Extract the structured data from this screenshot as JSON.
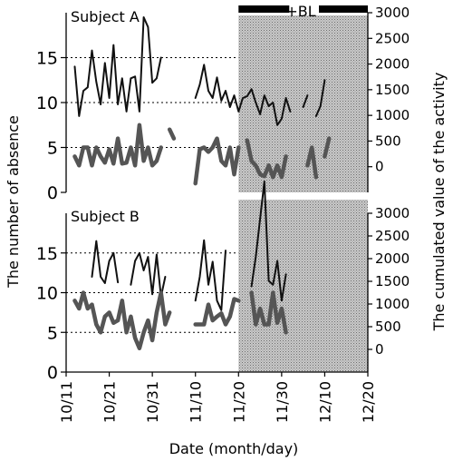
{
  "chart_data": [
    {
      "type": "line",
      "panel_label": "Subject A",
      "ylabel": "The number of absence",
      "y2label": "The cumulated value of the activity",
      "ylim": [
        0,
        20
      ],
      "y2lim": [
        -500,
        3000
      ],
      "yticks": [
        0,
        5,
        10,
        15
      ],
      "y2ticks": [
        0,
        500,
        1000,
        1500,
        2000,
        2500,
        3000
      ],
      "grid": "dotted at y = 5, 10, 15",
      "bl_annotation": "+BL",
      "bl_start": "11/20",
      "series": [
        {
          "style": "thin black line",
          "axis": "left",
          "x": [
            "10/13",
            "10/14",
            "10/15",
            "10/16",
            "10/17",
            "10/18",
            "10/19",
            "10/20",
            "10/21",
            "10/22",
            "10/23",
            "10/24",
            "10/25",
            "10/26",
            "10/27",
            "10/28",
            "10/29",
            "10/30",
            "10/31",
            "11/01",
            "11/02",
            null,
            "11/10",
            "11/11",
            "11/12",
            "11/13",
            "11/14",
            "11/15",
            "11/16",
            "11/17",
            "11/18",
            "11/19",
            "11/20",
            "11/21",
            "11/22",
            "11/23",
            "11/24",
            "11/25",
            "11/26",
            "11/27",
            "11/28",
            "11/29",
            "11/30",
            "12/01",
            "12/02",
            null,
            "12/05",
            "12/06",
            null,
            "12/08",
            "12/09",
            "12/10"
          ],
          "y": [
            14,
            8.5,
            11.3,
            11.7,
            15.8,
            12.3,
            9.8,
            14.4,
            10.5,
            16.4,
            9.8,
            12.7,
            9,
            12.7,
            12.9,
            9,
            19.5,
            18.4,
            12.2,
            12.7,
            15,
            null,
            10.5,
            12,
            14.2,
            11.3,
            10.5,
            12.8,
            10.2,
            11.3,
            9.5,
            10.8,
            9,
            10.5,
            10.7,
            11.5,
            10,
            8.7,
            10.8,
            9.6,
            10,
            7.5,
            8.2,
            10.5,
            9,
            null,
            9.5,
            10.8,
            null,
            8.5,
            9.6,
            12.5
          ]
        },
        {
          "style": "thick grey line",
          "axis": "left",
          "x": [
            "10/13",
            "10/14",
            "10/15",
            "10/16",
            "10/17",
            "10/18",
            "10/19",
            "10/20",
            "10/21",
            "10/22",
            "10/23",
            "10/24",
            "10/25",
            "10/26",
            "10/27",
            "10/28",
            "10/29",
            "10/30",
            "10/31",
            "11/01",
            "11/02",
            null,
            "11/04",
            "11/05",
            null,
            "11/10",
            "11/11",
            "11/12",
            "11/13",
            "11/14",
            "11/15",
            "11/16",
            "11/17",
            "11/18",
            "11/19",
            "11/20",
            null,
            "11/22",
            "11/23",
            "11/24",
            "11/25",
            "11/26",
            "11/27",
            "11/28",
            "11/29",
            "11/30",
            "12/01",
            null,
            "12/03",
            null,
            "12/06",
            "12/07",
            "12/08",
            null,
            "12/10",
            "12/11"
          ],
          "y": [
            4,
            3,
            5,
            5,
            3,
            5,
            4,
            3.3,
            4.8,
            3.2,
            6,
            3.2,
            3.3,
            5,
            3,
            7.5,
            3.5,
            5,
            3,
            3.5,
            5,
            null,
            7,
            6,
            null,
            1,
            4.8,
            5,
            4.5,
            5,
            6,
            3.5,
            3,
            5,
            2,
            5,
            null,
            5.8,
            3.5,
            3,
            2,
            1.8,
            3,
            1.7,
            3,
            1.7,
            4,
            null,
            2.3,
            null,
            3,
            5,
            1.7,
            null,
            4,
            6
          ]
        }
      ]
    },
    {
      "type": "line",
      "panel_label": "Subject B",
      "ylabel": "The number of absence",
      "y2label": "The cumulated value of the activity",
      "xlabel": "Date (month/day)",
      "ylim": [
        0,
        20
      ],
      "y2lim": [
        -500,
        3000
      ],
      "yticks": [
        0,
        5,
        10,
        15
      ],
      "y2ticks": [
        0,
        500,
        1000,
        1500,
        2000,
        2500,
        3000
      ],
      "xticks": [
        "10/11",
        "10/21",
        "10/31",
        "11/10",
        "11/20",
        "11/30",
        "12/10",
        "12/20"
      ],
      "grid": "dotted at y = 5, 10, 15",
      "bl_start": "11/20",
      "series": [
        {
          "style": "thin black line",
          "axis": "left",
          "x": [
            "10/17",
            "10/18",
            "10/19",
            "10/20",
            "10/21",
            "10/22",
            "10/23",
            null,
            "10/26",
            "10/27",
            "10/28",
            "10/29",
            "10/30",
            "10/31",
            "11/01",
            "11/02",
            "11/03",
            null,
            "11/10",
            "11/11",
            "11/12",
            "11/13",
            "11/14",
            "11/15",
            "11/16",
            "11/17",
            null,
            "11/23",
            "11/24",
            "11/25",
            "11/26",
            "11/27",
            "11/28",
            "11/29",
            "11/30",
            "12/01"
          ],
          "y": [
            12,
            16.5,
            12,
            11.2,
            14,
            15,
            11.3,
            null,
            11,
            14,
            15,
            12.8,
            14.5,
            9.8,
            14.8,
            9.5,
            12,
            null,
            9,
            12,
            16.6,
            11,
            13.9,
            9,
            7.8,
            15.3,
            null,
            10.8,
            14.5,
            19.3,
            24,
            11.5,
            11,
            14,
            9,
            12.3
          ]
        },
        {
          "style": "thick grey line",
          "axis": "left",
          "x": [
            "10/13",
            "10/14",
            "10/15",
            "10/16",
            "10/17",
            "10/18",
            "10/19",
            "10/20",
            "10/21",
            "10/22",
            "10/23",
            "10/24",
            "10/25",
            "10/26",
            "10/27",
            "10/28",
            "10/29",
            "10/30",
            "10/31",
            "11/01",
            "11/02",
            "11/03",
            "11/04",
            null,
            "11/10",
            "11/11",
            "11/12",
            "11/13",
            "11/14",
            "11/15",
            "11/16",
            "11/17",
            "11/18",
            "11/19",
            "11/20",
            null,
            "11/23",
            "11/24",
            "11/25",
            "11/26",
            "11/27",
            "11/28",
            "11/29",
            "11/30",
            "12/01"
          ],
          "y": [
            9,
            8,
            10,
            8,
            8.5,
            6,
            5,
            7,
            7.5,
            6.2,
            6.5,
            9,
            5,
            7,
            4.3,
            3,
            5,
            6.5,
            4,
            7.5,
            10,
            6,
            7.5,
            null,
            6,
            6,
            6,
            8.5,
            6.5,
            7,
            7.4,
            6,
            7,
            9.2,
            9,
            null,
            10,
            6,
            8,
            6,
            6,
            10,
            6.2,
            8,
            5
          ]
        }
      ]
    }
  ]
}
